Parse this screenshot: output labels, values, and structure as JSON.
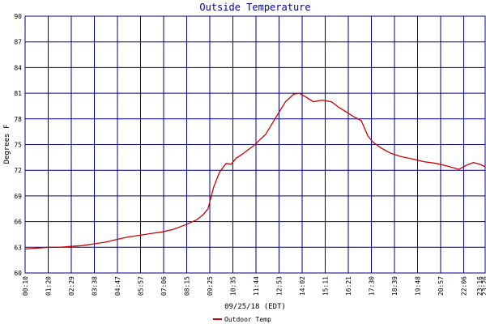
{
  "chart_data": {
    "type": "line",
    "title": "Outside Temperature",
    "xlabel": "09/25/18 (EDT)",
    "ylabel": "Degrees F",
    "ylim": [
      60,
      90
    ],
    "y_ticks": [
      60,
      63,
      66,
      69,
      72,
      75,
      78,
      81,
      84,
      87,
      90
    ],
    "x_tick_labels": [
      "00:10",
      "01:20",
      "02:29",
      "03:38",
      "04:47",
      "05:57",
      "07:06",
      "08:15",
      "09:25",
      "10:35",
      "11:44",
      "12:53",
      "14:02",
      "15:11",
      "16:21",
      "17:30",
      "18:39",
      "19:48",
      "20:57",
      "22:06",
      "23:16",
      "23:26"
    ],
    "grid": true,
    "legend_position": "bottom-left",
    "line_color": "#cc0000",
    "grid_color": "#000080",
    "series": [
      {
        "name": "Outdoor Temp",
        "x": [
          "00:10",
          "00:45",
          "01:20",
          "01:55",
          "02:29",
          "03:04",
          "03:38",
          "04:13",
          "04:47",
          "05:22",
          "05:57",
          "06:31",
          "07:06",
          "07:40",
          "08:15",
          "08:50",
          "09:10",
          "09:25",
          "09:42",
          "10:00",
          "10:20",
          "10:35",
          "10:50",
          "11:10",
          "11:44",
          "12:20",
          "12:53",
          "13:20",
          "13:45",
          "14:02",
          "14:20",
          "14:45",
          "15:11",
          "15:40",
          "16:00",
          "16:21",
          "16:45",
          "17:10",
          "17:30",
          "17:45",
          "18:10",
          "18:39",
          "19:10",
          "19:48",
          "20:20",
          "20:57",
          "21:30",
          "22:06",
          "22:30",
          "22:50",
          "23:10",
          "23:26"
        ],
        "y": [
          62.8,
          62.9,
          63.0,
          63.0,
          63.1,
          63.2,
          63.4,
          63.6,
          63.9,
          64.2,
          64.4,
          64.6,
          64.8,
          65.1,
          65.6,
          66.2,
          66.8,
          67.5,
          70.0,
          71.8,
          72.8,
          72.7,
          73.4,
          73.9,
          74.9,
          76.2,
          78.3,
          80.0,
          80.9,
          81.0,
          80.6,
          80.0,
          80.2,
          80.0,
          79.4,
          78.9,
          78.3,
          77.8,
          76.0,
          75.3,
          74.6,
          74.0,
          73.6,
          73.3,
          73.0,
          72.8,
          72.5,
          72.1,
          72.6,
          72.9,
          72.7,
          72.4
        ]
      }
    ]
  }
}
